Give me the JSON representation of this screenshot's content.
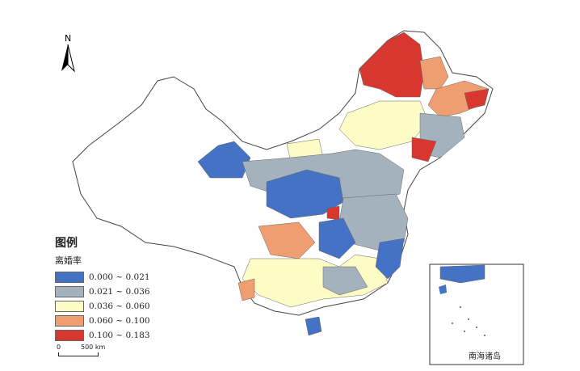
{
  "north_arrow": {
    "label": "N"
  },
  "legend": {
    "title": "图例",
    "variable": "离婚率",
    "classes": [
      {
        "range": "0.000 ~ 0.021",
        "color": "#4472c4"
      },
      {
        "range": "0.021 ~ 0.036",
        "color": "#a4b2be"
      },
      {
        "range": "0.036 ~ 0.060",
        "color": "#fdfbc6"
      },
      {
        "range": "0.060 ~ 0.100",
        "color": "#ef9e72"
      },
      {
        "range": "0.100 ~ 0.183",
        "color": "#d7372e"
      }
    ]
  },
  "scale_bar": {
    "start": "0",
    "end": "500 km"
  },
  "inset": {
    "label": "南海诸岛"
  }
}
